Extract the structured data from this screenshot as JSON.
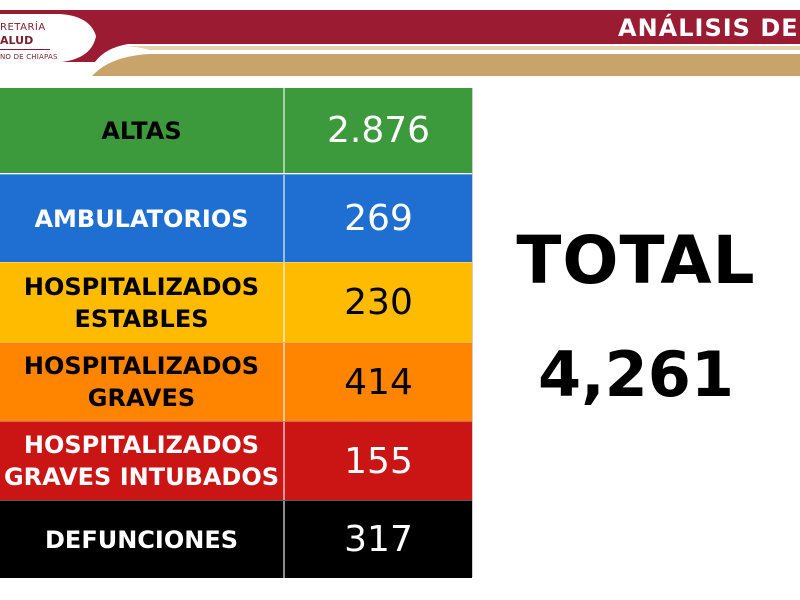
{
  "header": {
    "logo_line1": "RETARÍA",
    "logo_line2": "ALUD",
    "logo_line3": "NO DE CHIAPAS",
    "title": "ANÁLISIS DE",
    "colors": {
      "maroon": "#9b1b33",
      "gold": "#c8a46a"
    }
  },
  "table": {
    "rows": [
      {
        "label": "ALTAS",
        "value": "2.876",
        "bg": "#3c9a3c",
        "fg": "#000000",
        "value_fg": "#ffffff"
      },
      {
        "label": "AMBULATORIOS",
        "value": "269",
        "bg": "#1e6fd1",
        "fg": "#ffffff",
        "value_fg": "#ffffff"
      },
      {
        "label": "HOSPITALIZADOS\nESTABLES",
        "value": "230",
        "bg": "#ffbb00",
        "fg": "#000000",
        "value_fg": "#000000"
      },
      {
        "label": "HOSPITALIZADOS\nGRAVES",
        "value": "414",
        "bg": "#ff8400",
        "fg": "#000000",
        "value_fg": "#000000"
      },
      {
        "label": "HOSPITALIZADOS\nGRAVES INTUBADOS",
        "value": "155",
        "bg": "#cb1414",
        "fg": "#ffffff",
        "value_fg": "#ffffff"
      },
      {
        "label": "DEFUNCIONES",
        "value": "317",
        "bg": "#000000",
        "fg": "#ffffff",
        "value_fg": "#ffffff"
      }
    ]
  },
  "total": {
    "label": "TOTAL",
    "value": "4,261"
  }
}
